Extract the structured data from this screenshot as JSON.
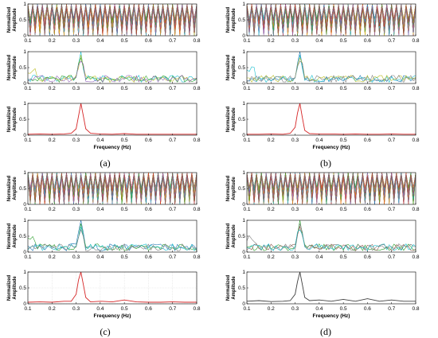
{
  "figure": {
    "captions": [
      "(a)",
      "(b)",
      "(c)",
      "(d)"
    ]
  },
  "chart_data": [
    {
      "type": "line",
      "panel": "(a)",
      "xlabel": "Frequency (Hz)",
      "ylabel": "Normalized Amplitude",
      "xlim": [
        0.1,
        0.8
      ],
      "xticks": [
        0.1,
        0.2,
        0.3,
        0.4,
        0.5,
        0.6,
        0.7,
        0.8
      ],
      "subplots": [
        {
          "role": "all-traces",
          "ylim": [
            0,
            1
          ],
          "yticks": [
            0,
            0.5,
            1
          ],
          "grid": false,
          "colors": [
            "#1f77b4",
            "#ff7f0e",
            "#2ca02c",
            "#d62728",
            "#9467bd",
            "#8c564b",
            "#e377c2",
            "#7f7f7f",
            "#bcbd22",
            "#17becf",
            "#edb120",
            "#4dbeee"
          ]
        },
        {
          "role": "selected-traces",
          "ylim": [
            0,
            1
          ],
          "yticks": [
            0,
            0.5,
            1
          ],
          "grid": false,
          "peak_x": 0.32,
          "colors": [
            "#17becf",
            "#bcbd22",
            "#2ca02c",
            "#9467bd"
          ]
        },
        {
          "role": "average",
          "ylim": [
            0,
            1
          ],
          "yticks": [
            0,
            0.5,
            1
          ],
          "grid": false,
          "color": "#d62728",
          "x": [
            0.1,
            0.15,
            0.2,
            0.25,
            0.28,
            0.3,
            0.31,
            0.32,
            0.33,
            0.34,
            0.36,
            0.4,
            0.45,
            0.5,
            0.55,
            0.6,
            0.65,
            0.7,
            0.75,
            0.8
          ],
          "y": [
            0.03,
            0.04,
            0.03,
            0.04,
            0.06,
            0.2,
            0.6,
            1.0,
            0.6,
            0.2,
            0.06,
            0.04,
            0.03,
            0.05,
            0.03,
            0.03,
            0.03,
            0.03,
            0.03,
            0.03
          ]
        }
      ]
    },
    {
      "type": "line",
      "panel": "(b)",
      "xlabel": "Frequency (Hz)",
      "ylabel": "Normalized Amplitude",
      "xlim": [
        0.1,
        0.8
      ],
      "xticks": [
        0.1,
        0.2,
        0.3,
        0.4,
        0.5,
        0.6,
        0.7,
        0.8
      ],
      "subplots": [
        {
          "role": "all-traces",
          "ylim": [
            0,
            1
          ],
          "yticks": [
            0,
            0.5,
            1
          ],
          "grid": false,
          "colors": [
            "#1f77b4",
            "#ff7f0e",
            "#2ca02c",
            "#d62728",
            "#9467bd",
            "#8c564b",
            "#e377c2",
            "#7f7f7f",
            "#bcbd22",
            "#17becf",
            "#edb120",
            "#4dbeee"
          ]
        },
        {
          "role": "selected-traces",
          "ylim": [
            0,
            1
          ],
          "yticks": [
            0,
            0.5,
            1
          ],
          "grid": false,
          "peak_x": 0.32,
          "colors": [
            "#1f77b4",
            "#17becf",
            "#bcbd22",
            "#7f7f7f"
          ]
        },
        {
          "role": "average",
          "ylim": [
            0,
            1
          ],
          "yticks": [
            0,
            0.5,
            1
          ],
          "grid": false,
          "color": "#d62728",
          "x": [
            0.1,
            0.15,
            0.2,
            0.25,
            0.28,
            0.3,
            0.31,
            0.32,
            0.33,
            0.34,
            0.36,
            0.4,
            0.45,
            0.5,
            0.55,
            0.6,
            0.65,
            0.7,
            0.75,
            0.8
          ],
          "y": [
            0.03,
            0.03,
            0.04,
            0.03,
            0.06,
            0.25,
            0.7,
            1.0,
            0.55,
            0.15,
            0.05,
            0.04,
            0.04,
            0.03,
            0.04,
            0.03,
            0.03,
            0.04,
            0.03,
            0.03
          ]
        }
      ]
    },
    {
      "type": "line",
      "panel": "(c)",
      "xlabel": "Frequency (Hz)",
      "ylabel": "Normalized Amplitude",
      "xlim": [
        0.1,
        0.8
      ],
      "xticks": [
        0.1,
        0.2,
        0.3,
        0.4,
        0.5,
        0.6,
        0.7,
        0.8
      ],
      "subplots": [
        {
          "role": "all-traces",
          "ylim": [
            0,
            1
          ],
          "yticks": [
            0,
            0.5,
            1
          ],
          "grid": false,
          "colors": [
            "#1f77b4",
            "#ff7f0e",
            "#2ca02c",
            "#d62728",
            "#9467bd",
            "#8c564b",
            "#e377c2",
            "#7f7f7f",
            "#bcbd22",
            "#17becf",
            "#edb120",
            "#4dbeee"
          ]
        },
        {
          "role": "selected-traces",
          "ylim": [
            0,
            1
          ],
          "yticks": [
            0,
            0.5,
            1
          ],
          "grid": false,
          "peak_x": 0.32,
          "colors": [
            "#1f77b4",
            "#2ca02c",
            "#17becf",
            "#7f7f7f"
          ]
        },
        {
          "role": "average",
          "ylim": [
            0,
            1
          ],
          "yticks": [
            0,
            0.5,
            1
          ],
          "grid": true,
          "color": "#d62728",
          "x": [
            0.1,
            0.15,
            0.2,
            0.25,
            0.28,
            0.3,
            0.31,
            0.32,
            0.33,
            0.34,
            0.36,
            0.4,
            0.45,
            0.5,
            0.55,
            0.6,
            0.65,
            0.7,
            0.75,
            0.8
          ],
          "y": [
            0.05,
            0.06,
            0.05,
            0.08,
            0.08,
            0.3,
            0.75,
            1.0,
            0.6,
            0.2,
            0.06,
            0.08,
            0.06,
            0.12,
            0.06,
            0.05,
            0.05,
            0.06,
            0.05,
            0.05
          ]
        }
      ]
    },
    {
      "type": "line",
      "panel": "(d)",
      "xlabel": "Frequency (Hz)",
      "ylabel": "Normalized Amplitude",
      "xlim": [
        0.1,
        0.8
      ],
      "xticks": [
        0.1,
        0.2,
        0.3,
        0.4,
        0.5,
        0.6,
        0.7,
        0.8
      ],
      "subplots": [
        {
          "role": "all-traces",
          "ylim": [
            0,
            1
          ],
          "yticks": [
            0,
            0.5,
            1
          ],
          "grid": false,
          "colors": [
            "#1f77b4",
            "#ff7f0e",
            "#2ca02c",
            "#d62728",
            "#9467bd",
            "#8c564b",
            "#e377c2",
            "#7f7f7f",
            "#bcbd22",
            "#17becf",
            "#edb120",
            "#4dbeee"
          ]
        },
        {
          "role": "selected-traces",
          "ylim": [
            0,
            1
          ],
          "yticks": [
            0,
            0.5,
            1
          ],
          "grid": false,
          "peak_x": 0.32,
          "colors": [
            "#2ca02c",
            "#7f7f7f",
            "#8c564b",
            "#17becf"
          ]
        },
        {
          "role": "average",
          "ylim": [
            0,
            1
          ],
          "yticks": [
            0,
            0.5,
            1
          ],
          "grid": false,
          "color": "#404040",
          "x": [
            0.1,
            0.15,
            0.2,
            0.25,
            0.28,
            0.3,
            0.31,
            0.32,
            0.33,
            0.34,
            0.36,
            0.4,
            0.45,
            0.5,
            0.55,
            0.6,
            0.65,
            0.7,
            0.75,
            0.8
          ],
          "y": [
            0.08,
            0.1,
            0.07,
            0.08,
            0.1,
            0.3,
            0.7,
            1.0,
            0.6,
            0.2,
            0.1,
            0.12,
            0.08,
            0.14,
            0.08,
            0.16,
            0.08,
            0.12,
            0.08,
            0.08
          ]
        }
      ]
    }
  ]
}
